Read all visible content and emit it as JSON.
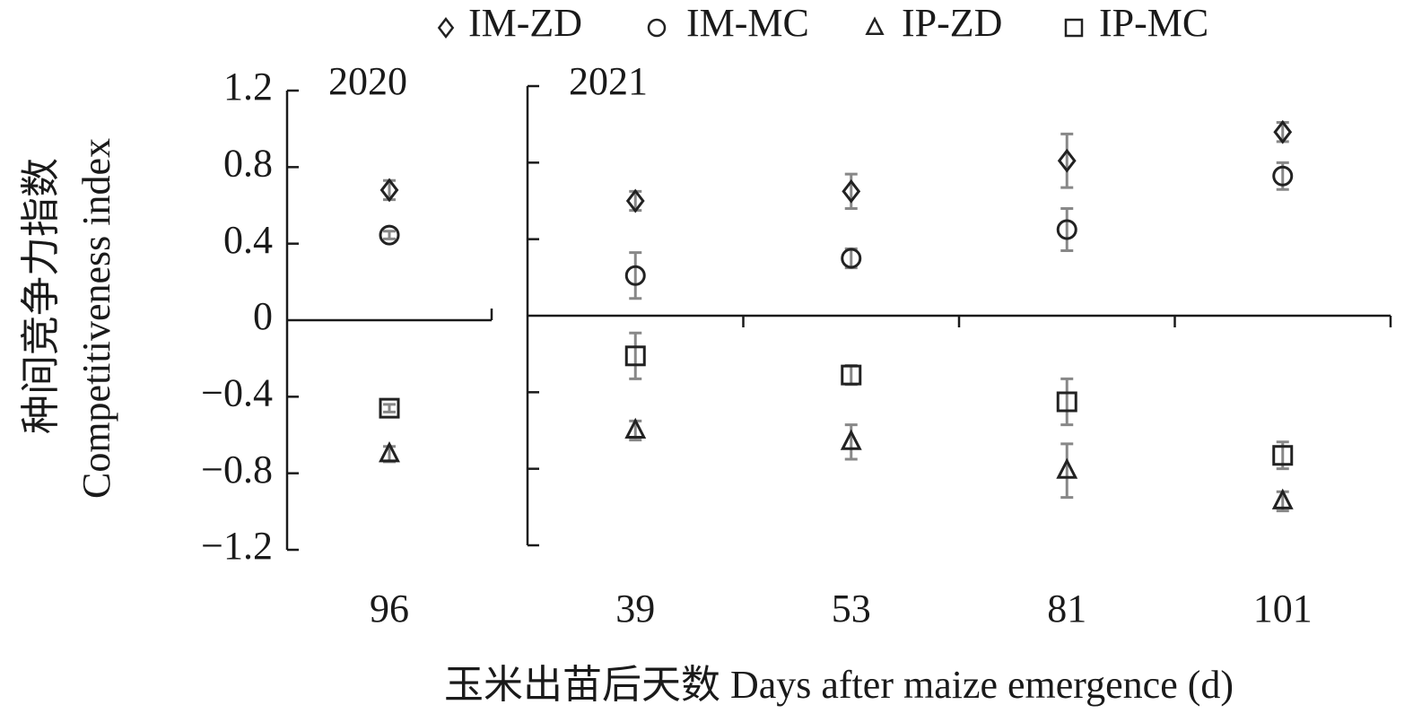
{
  "chart_data": {
    "type": "scatter",
    "ylabel": [
      "种间竞争力指数",
      "Competitiveness index"
    ],
    "xlabel": "玉米出苗后天数 Days after maize emergence (d)",
    "ylim": [
      -1.2,
      1.2
    ],
    "yticks": [
      {
        "value": -1.2,
        "label": "−1.2"
      },
      {
        "value": -0.8,
        "label": "−0.8"
      },
      {
        "value": -0.4,
        "label": "−0.4"
      },
      0,
      0.4,
      0.8,
      1.2
    ],
    "legend": [
      {
        "name": "IM-ZD",
        "marker": "diamond",
        "color": "#222222"
      },
      {
        "name": "IM-MC",
        "marker": "circle",
        "color": "#222222"
      },
      {
        "name": "IP-ZD",
        "marker": "triangle",
        "color": "#222222"
      },
      {
        "name": "IP-MC",
        "marker": "square",
        "color": "#222222"
      }
    ],
    "error_color": "#888888",
    "panels": [
      {
        "label": "2020",
        "categories": [
          "96"
        ],
        "series": [
          {
            "values": [
              0.68
            ],
            "errors": [
              0.05
            ]
          },
          {
            "values": [
              0.445
            ],
            "errors": [
              0.02
            ]
          },
          {
            "values": [
              -0.7
            ],
            "errors": [
              0.04
            ]
          },
          {
            "values": [
              -0.46
            ],
            "errors": [
              0.02
            ]
          }
        ]
      },
      {
        "label": "2021",
        "categories": [
          "39",
          "53",
          "81",
          "101"
        ],
        "series": [
          {
            "values": [
              0.6,
              0.65,
              0.81,
              0.96
            ],
            "errors": [
              0.05,
              0.09,
              0.14,
              0.05
            ]
          },
          {
            "values": [
              0.21,
              0.3,
              0.45,
              0.73
            ],
            "errors": [
              0.12,
              0.05,
              0.11,
              0.07
            ]
          },
          {
            "values": [
              -0.6,
              -0.66,
              -0.81,
              -0.97
            ],
            "errors": [
              0.05,
              0.09,
              0.14,
              0.05
            ]
          },
          {
            "values": [
              -0.21,
              -0.31,
              -0.45,
              -0.73
            ],
            "errors": [
              0.12,
              0.05,
              0.12,
              0.07
            ]
          }
        ]
      }
    ]
  }
}
